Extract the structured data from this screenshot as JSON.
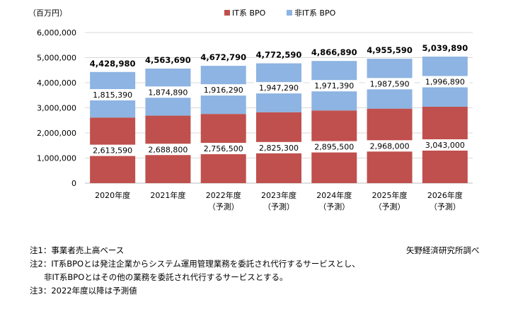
{
  "chart_data": {
    "type": "bar",
    "stacked": true,
    "unit_label": "（百万円）",
    "categories": [
      [
        "2020年度"
      ],
      [
        "2021年度"
      ],
      [
        "2022年度",
        "（予測）"
      ],
      [
        "2023年度",
        "（予測）"
      ],
      [
        "2024年度",
        "（予測）"
      ],
      [
        "2025年度",
        "（予測）"
      ],
      [
        "2026年度",
        "（予測）"
      ]
    ],
    "series": [
      {
        "name": "IT系 BPO",
        "color": "#c0504d",
        "values": [
          2613590,
          2688800,
          2756500,
          2825300,
          2895500,
          2968000,
          3043000
        ],
        "labels": [
          "2,613,590",
          "2,688,800",
          "2,756,500",
          "2,825,300",
          "2,895,500",
          "2,968,000",
          "3,043,000"
        ]
      },
      {
        "name": "非IT系 BPO",
        "color": "#8db4e2",
        "values": [
          1815390,
          1874890,
          1916290,
          1947290,
          1971390,
          1987590,
          1996890
        ],
        "labels": [
          "1,815,390",
          "1,874,890",
          "1,916,290",
          "1,947,290",
          "1,971,390",
          "1,987,590",
          "1,996,890"
        ]
      }
    ],
    "totals": [
      4428980,
      4563690,
      4672790,
      4772590,
      4866890,
      4955590,
      5039890
    ],
    "total_labels": [
      "4,428,980",
      "4,563,690",
      "4,672,790",
      "4,772,590",
      "4,866,890",
      "4,955,590",
      "5,039,890"
    ],
    "ylim": [
      0,
      6000000
    ],
    "yticks": [
      0,
      1000000,
      2000000,
      3000000,
      4000000,
      5000000,
      6000000
    ],
    "ytick_labels": [
      "0",
      "1,000,000",
      "2,000,000",
      "3,000,000",
      "4,000,000",
      "5,000,000",
      "6,000,000"
    ],
    "grid": true,
    "legend": "top-center"
  },
  "notes": [
    "注1：事業者売上高ベース",
    "注2：IT系BPOとは発注企業からシステム運用管理業務を委託され代行するサービスとし、",
    "非IT系BPOとはその他の業務を委託され代行するサービスとする。",
    "注3：2022年度以降は予測値"
  ],
  "source": "矢野経済研究所調べ"
}
